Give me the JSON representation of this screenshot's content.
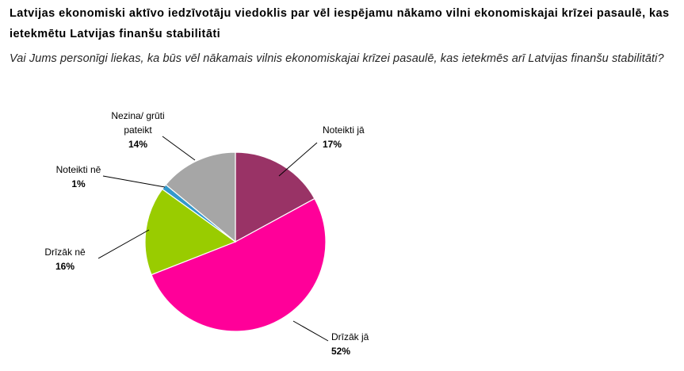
{
  "chart_data": {
    "type": "pie",
    "title": "Latvijas ekonomiski aktīvo iedzīvotāju viedoklis par vēl iespējamu nākamo vilni ekonomiskajai krīzei pasaulē, kas ietekmētu Latvijas finanšu stabilitāti",
    "subtitle": "Vai Jums personīgi liekas, ka būs vēl nākamais vilnis ekonomiskajai krīzei pasaulē, kas ietekmēs arī Latvijas finanšu stabilitāti?",
    "slices": [
      {
        "label": "Noteikti jā",
        "value": 17,
        "value_label": "17%",
        "color": "#993366"
      },
      {
        "label": "Drīzāk jā",
        "value": 52,
        "value_label": "52%",
        "color": "#FF0099"
      },
      {
        "label": "Drīzāk nē",
        "value": 16,
        "value_label": "16%",
        "color": "#99CC00"
      },
      {
        "label": "Noteikti nē",
        "value": 1,
        "value_label": "1%",
        "color": "#3399CC"
      },
      {
        "label": "Nezina/ grūti pateikt",
        "value": 14,
        "value_label": "14%",
        "color": "#A6A6A6"
      }
    ]
  }
}
